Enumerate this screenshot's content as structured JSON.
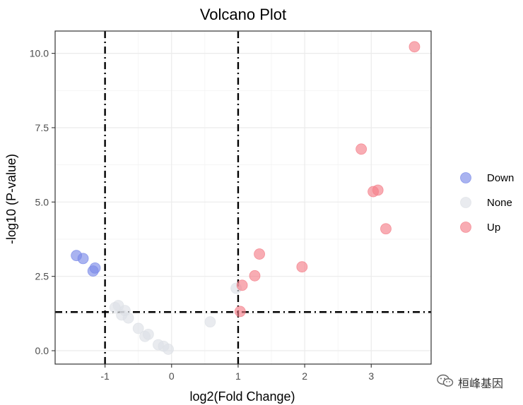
{
  "chart_data": {
    "type": "scatter",
    "title": "Volcano Plot",
    "xlabel": "log2(Fold Change)",
    "ylabel": "-log10 (P-value)",
    "xlim": [
      -1.75,
      3.9
    ],
    "ylim": [
      -0.45,
      10.75
    ],
    "x_ticks": [
      -1,
      0,
      1,
      2,
      3
    ],
    "x_tick_labels": [
      "-1",
      "0",
      "1",
      "2",
      "3"
    ],
    "y_ticks": [
      0,
      2.5,
      5,
      7.5,
      10
    ],
    "y_tick_labels": [
      "0.0",
      "2.5",
      "5.0",
      "7.5",
      "10.0"
    ],
    "thresholds": {
      "x": [
        -1,
        1
      ],
      "y": 1.3
    },
    "grid": true,
    "legend": {
      "placement": "right",
      "entries": [
        "Down",
        "None",
        "Up"
      ]
    },
    "colors": {
      "Down": "#7b8be8",
      "None": "#dde1e6",
      "Up": "#f47f8a"
    },
    "series": [
      {
        "name": "Down",
        "points": [
          {
            "x": -1.43,
            "y": 3.2
          },
          {
            "x": -1.33,
            "y": 3.1
          },
          {
            "x": -1.15,
            "y": 2.78
          },
          {
            "x": -1.18,
            "y": 2.68
          }
        ]
      },
      {
        "name": "None",
        "points": [
          {
            "x": -0.85,
            "y": 1.45
          },
          {
            "x": -0.8,
            "y": 1.52
          },
          {
            "x": -0.75,
            "y": 1.2
          },
          {
            "x": -0.7,
            "y": 1.35
          },
          {
            "x": -0.65,
            "y": 1.1
          },
          {
            "x": -0.5,
            "y": 0.75
          },
          {
            "x": -0.4,
            "y": 0.48
          },
          {
            "x": -0.35,
            "y": 0.55
          },
          {
            "x": -0.2,
            "y": 0.2
          },
          {
            "x": -0.12,
            "y": 0.15
          },
          {
            "x": -0.05,
            "y": 0.05
          },
          {
            "x": 0.58,
            "y": 0.97
          },
          {
            "x": 0.97,
            "y": 2.1
          }
        ]
      },
      {
        "name": "Up",
        "points": [
          {
            "x": 1.03,
            "y": 1.32
          },
          {
            "x": 1.06,
            "y": 2.2
          },
          {
            "x": 1.25,
            "y": 2.52
          },
          {
            "x": 1.32,
            "y": 3.25
          },
          {
            "x": 1.96,
            "y": 2.82
          },
          {
            "x": 2.85,
            "y": 6.78
          },
          {
            "x": 3.03,
            "y": 5.35
          },
          {
            "x": 3.1,
            "y": 5.4
          },
          {
            "x": 3.22,
            "y": 4.1
          },
          {
            "x": 3.65,
            "y": 10.22
          }
        ]
      }
    ]
  },
  "watermark": {
    "text": "桓峰基因",
    "icon": "wechat-icon"
  }
}
